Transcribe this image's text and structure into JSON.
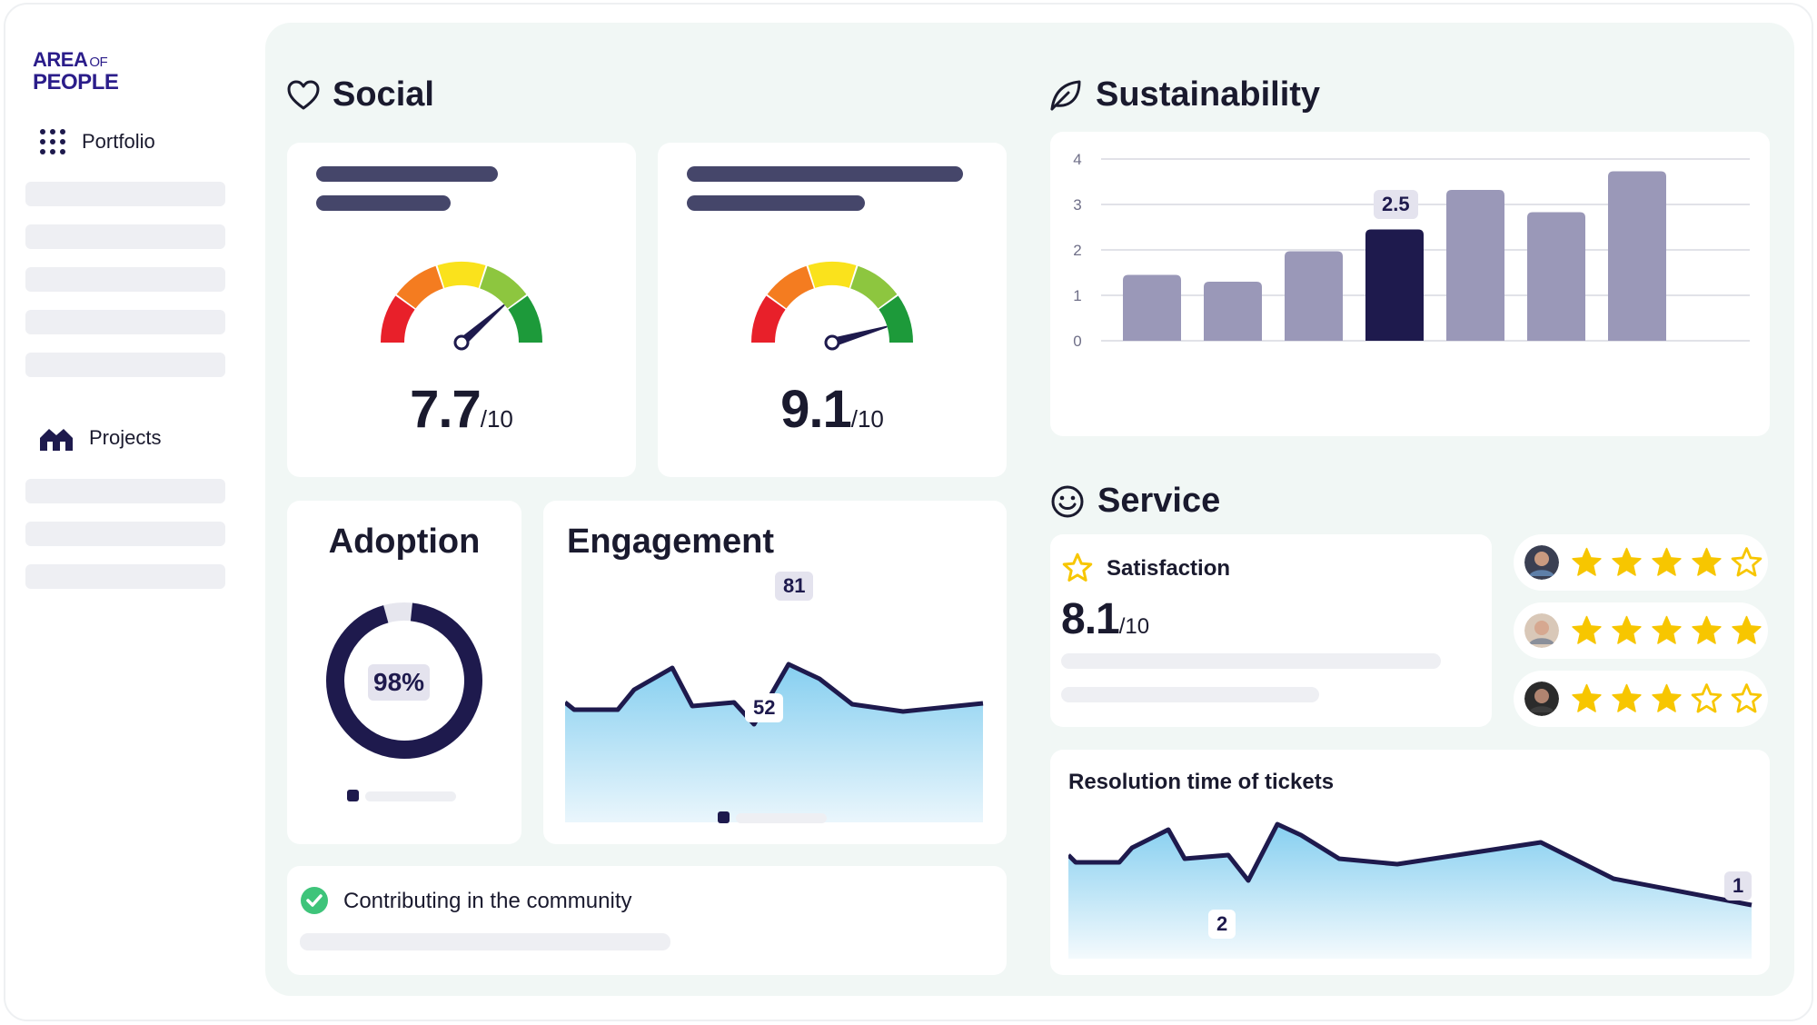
{
  "brand": {
    "line1": "AREA",
    "line1_small": "OF",
    "line2": "PEOPLE"
  },
  "sidebar": {
    "portfolio_label": "Portfolio",
    "projects_label": "Projects"
  },
  "social": {
    "title": "Social",
    "gauges": [
      {
        "value": "7.7",
        "denominator": "/10",
        "score": 7.7
      },
      {
        "value": "9.1",
        "denominator": "/10",
        "score": 9.1
      }
    ]
  },
  "adoption": {
    "title": "Adoption",
    "percent_label": "98%",
    "percent": 98
  },
  "engagement": {
    "title": "Engagement",
    "peak_label": "81",
    "low_label": "52"
  },
  "community": {
    "label": "Contributing in the community"
  },
  "sustainability": {
    "title": "Sustainability",
    "highlight_label": "2.5",
    "chart_data": {
      "type": "bar",
      "values": [
        1.45,
        1.3,
        1.97,
        2.45,
        3.32,
        2.83,
        3.73
      ],
      "highlight_index": 3,
      "ylim": [
        0,
        4
      ],
      "yticks": [
        "0",
        "1",
        "2",
        "3",
        "4"
      ]
    }
  },
  "service": {
    "title": "Service",
    "satisfaction_label": "Satisfaction",
    "satisfaction_value": "8.1",
    "satisfaction_den": "/10",
    "reviews": [
      {
        "avatar": "avatar-1",
        "stars": 4
      },
      {
        "avatar": "avatar-2",
        "stars": 5
      },
      {
        "avatar": "avatar-3",
        "stars": 3
      }
    ],
    "resolution_title": "Resolution time of tickets",
    "resolution_low_label": "2",
    "resolution_end_label": "1"
  },
  "colors": {
    "accent": "#1e1a4d",
    "bar": "#9a98b8",
    "highlight": "#1e1a4d",
    "star": "#f7c600",
    "success": "#3ec47a",
    "panel": "#f1f7f5"
  }
}
